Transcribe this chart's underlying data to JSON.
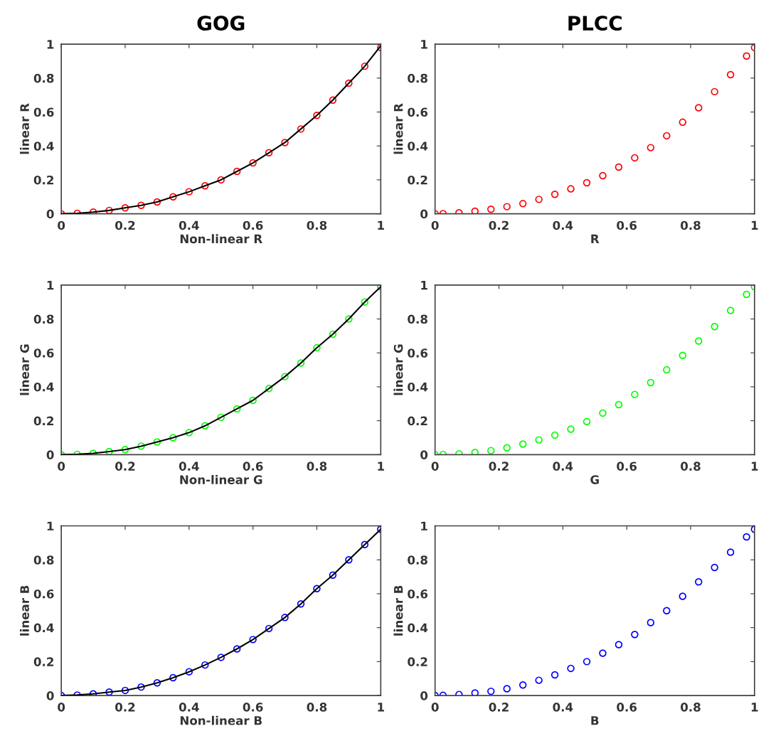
{
  "chart_data": [
    {
      "type": "scatter",
      "title": "GOG",
      "xlabel": "Non-linear R",
      "ylabel": "linear R",
      "x": [
        0,
        0.05,
        0.1,
        0.15,
        0.2,
        0.25,
        0.3,
        0.35,
        0.4,
        0.45,
        0.5,
        0.55,
        0.6,
        0.65,
        0.7,
        0.75,
        0.8,
        0.85,
        0.9,
        0.95,
        1
      ],
      "xlim": [
        0,
        1
      ],
      "ylim": [
        0,
        1
      ],
      "xticks": [
        0,
        0.2,
        0.4,
        0.6,
        0.8,
        1
      ],
      "yticks": [
        0,
        0.2,
        0.4,
        0.6,
        0.8,
        1
      ],
      "series": [
        {
          "color": "#ff0000",
          "marker": "circle",
          "values": [
            0,
            0.003,
            0.01,
            0.02,
            0.035,
            0.05,
            0.07,
            0.1,
            0.13,
            0.165,
            0.2,
            0.25,
            0.3,
            0.36,
            0.42,
            0.5,
            0.58,
            0.67,
            0.77,
            0.87,
            0.98
          ]
        },
        {
          "type": "line",
          "color": "#000000",
          "values": [
            0,
            0.003,
            0.01,
            0.02,
            0.035,
            0.05,
            0.07,
            0.1,
            0.13,
            0.165,
            0.2,
            0.25,
            0.3,
            0.36,
            0.42,
            0.5,
            0.58,
            0.67,
            0.77,
            0.87,
            0.99
          ]
        }
      ]
    },
    {
      "type": "scatter",
      "title": "PLCC",
      "xlabel": "R",
      "ylabel": "linear R",
      "x": [
        0,
        0.025,
        0.075,
        0.125,
        0.175,
        0.225,
        0.275,
        0.325,
        0.375,
        0.425,
        0.475,
        0.525,
        0.575,
        0.625,
        0.675,
        0.725,
        0.775,
        0.825,
        0.875,
        0.925,
        0.975,
        1
      ],
      "xlim": [
        0,
        1
      ],
      "ylim": [
        0,
        1
      ],
      "xticks": [
        0,
        0.2,
        0.4,
        0.6,
        0.8,
        1
      ],
      "yticks": [
        0,
        0.2,
        0.4,
        0.6,
        0.8,
        1
      ],
      "series": [
        {
          "color": "#ff0000",
          "marker": "circle",
          "values": [
            0,
            0.001,
            0.006,
            0.015,
            0.027,
            0.042,
            0.06,
            0.085,
            0.115,
            0.147,
            0.183,
            0.225,
            0.275,
            0.33,
            0.39,
            0.46,
            0.54,
            0.625,
            0.72,
            0.82,
            0.93,
            0.98
          ]
        }
      ]
    },
    {
      "type": "scatter",
      "xlabel": "Non-linear G",
      "ylabel": "linear G",
      "x": [
        0,
        0.05,
        0.1,
        0.15,
        0.2,
        0.25,
        0.3,
        0.35,
        0.4,
        0.45,
        0.5,
        0.55,
        0.6,
        0.65,
        0.7,
        0.75,
        0.8,
        0.85,
        0.9,
        0.95,
        1
      ],
      "xlim": [
        0,
        1
      ],
      "ylim": [
        0,
        1
      ],
      "xticks": [
        0,
        0.2,
        0.4,
        0.6,
        0.8,
        1
      ],
      "yticks": [
        0,
        0.2,
        0.4,
        0.6,
        0.8,
        1
      ],
      "series": [
        {
          "color": "#00ff00",
          "marker": "circle",
          "values": [
            0,
            0.002,
            0.008,
            0.018,
            0.03,
            0.05,
            0.075,
            0.1,
            0.13,
            0.17,
            0.22,
            0.27,
            0.32,
            0.39,
            0.46,
            0.54,
            0.63,
            0.71,
            0.8,
            0.9,
            0.99
          ]
        },
        {
          "type": "line",
          "color": "#000000",
          "values": [
            0,
            0.002,
            0.008,
            0.018,
            0.03,
            0.05,
            0.075,
            0.1,
            0.13,
            0.17,
            0.22,
            0.27,
            0.32,
            0.39,
            0.46,
            0.54,
            0.63,
            0.71,
            0.8,
            0.9,
            0.99
          ]
        }
      ]
    },
    {
      "type": "scatter",
      "xlabel": "G",
      "ylabel": "linear G",
      "x": [
        0,
        0.025,
        0.075,
        0.125,
        0.175,
        0.225,
        0.275,
        0.325,
        0.375,
        0.425,
        0.475,
        0.525,
        0.575,
        0.625,
        0.675,
        0.725,
        0.775,
        0.825,
        0.875,
        0.925,
        0.975,
        1
      ],
      "xlim": [
        0,
        1
      ],
      "ylim": [
        0,
        1
      ],
      "xticks": [
        0,
        0.2,
        0.4,
        0.6,
        0.8,
        1
      ],
      "yticks": [
        0,
        0.2,
        0.4,
        0.6,
        0.8,
        1
      ],
      "series": [
        {
          "color": "#00ff00",
          "marker": "circle",
          "values": [
            0,
            0.001,
            0.005,
            0.013,
            0.024,
            0.04,
            0.062,
            0.087,
            0.115,
            0.15,
            0.195,
            0.245,
            0.295,
            0.355,
            0.425,
            0.5,
            0.585,
            0.67,
            0.755,
            0.85,
            0.945,
            0.99
          ]
        }
      ]
    },
    {
      "type": "scatter",
      "xlabel": "Non-linear B",
      "ylabel": "linear B",
      "x": [
        0,
        0.05,
        0.1,
        0.15,
        0.2,
        0.25,
        0.3,
        0.35,
        0.4,
        0.45,
        0.5,
        0.55,
        0.6,
        0.65,
        0.7,
        0.75,
        0.8,
        0.85,
        0.9,
        0.95,
        1
      ],
      "xlim": [
        0,
        1
      ],
      "ylim": [
        0,
        1
      ],
      "xticks": [
        0,
        0.2,
        0.4,
        0.6,
        0.8,
        1
      ],
      "yticks": [
        0,
        0.2,
        0.4,
        0.6,
        0.8,
        1
      ],
      "series": [
        {
          "color": "#0000ff",
          "marker": "circle",
          "values": [
            0,
            0.003,
            0.01,
            0.02,
            0.03,
            0.05,
            0.075,
            0.105,
            0.14,
            0.18,
            0.225,
            0.275,
            0.33,
            0.395,
            0.46,
            0.54,
            0.63,
            0.71,
            0.8,
            0.89,
            0.98
          ]
        },
        {
          "type": "line",
          "color": "#000000",
          "values": [
            0,
            0.003,
            0.01,
            0.02,
            0.03,
            0.05,
            0.075,
            0.105,
            0.14,
            0.18,
            0.225,
            0.275,
            0.33,
            0.395,
            0.46,
            0.54,
            0.63,
            0.71,
            0.8,
            0.89,
            0.98
          ]
        }
      ]
    },
    {
      "type": "scatter",
      "xlabel": "B",
      "ylabel": "linear B",
      "x": [
        0,
        0.025,
        0.075,
        0.125,
        0.175,
        0.225,
        0.275,
        0.325,
        0.375,
        0.425,
        0.475,
        0.525,
        0.575,
        0.625,
        0.675,
        0.725,
        0.775,
        0.825,
        0.875,
        0.925,
        0.975,
        1
      ],
      "xlim": [
        0,
        1
      ],
      "ylim": [
        0,
        1
      ],
      "xticks": [
        0,
        0.2,
        0.4,
        0.6,
        0.8,
        1
      ],
      "yticks": [
        0,
        0.2,
        0.4,
        0.6,
        0.8,
        1
      ],
      "series": [
        {
          "color": "#0000ff",
          "marker": "circle",
          "values": [
            0,
            0.001,
            0.006,
            0.015,
            0.025,
            0.04,
            0.062,
            0.09,
            0.122,
            0.16,
            0.2,
            0.25,
            0.3,
            0.36,
            0.43,
            0.5,
            0.585,
            0.67,
            0.755,
            0.845,
            0.935,
            0.98
          ]
        }
      ]
    }
  ]
}
